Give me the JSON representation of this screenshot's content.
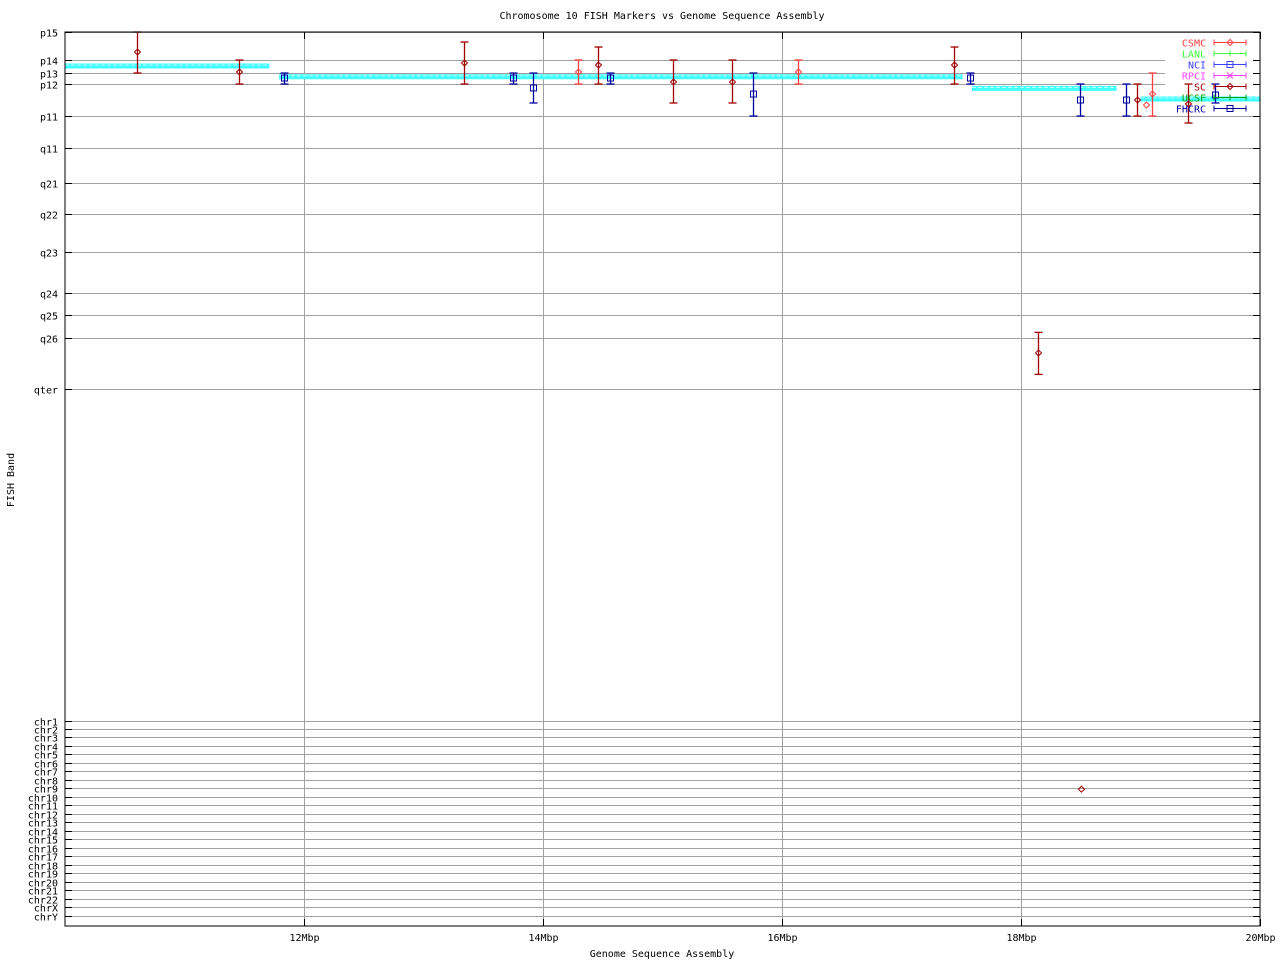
{
  "chart_data": {
    "type": "scatter",
    "title": "Chromosome 10 FISH Markers vs Genome Sequence Assembly",
    "xlabel": "Genome Sequence Assembly",
    "ylabel": "FISH Band",
    "xlim": [
      10,
      20
    ],
    "x_unit": "Mbp",
    "xticks": [
      {
        "v": 12,
        "label": "12Mbp"
      },
      {
        "v": 14,
        "label": "14Mbp"
      },
      {
        "v": 16,
        "label": "16Mbp"
      },
      {
        "v": 18,
        "label": "18Mbp"
      },
      {
        "v": 20,
        "label": "20Mbp"
      }
    ],
    "ylim": [
      0,
      100
    ],
    "y_inverted": true,
    "grid": true,
    "legend_placement": "top-right",
    "yticks": [
      {
        "v": 0,
        "label": "p15"
      },
      {
        "v": 3.1,
        "label": "p14"
      },
      {
        "v": 4.6,
        "label": "p13"
      },
      {
        "v": 5.8,
        "label": "p12"
      },
      {
        "v": 9.4,
        "label": "p11"
      },
      {
        "v": 13.0,
        "label": "q11"
      },
      {
        "v": 16.9,
        "label": "q21"
      },
      {
        "v": 20.4,
        "label": "q22"
      },
      {
        "v": 24.6,
        "label": "q23"
      },
      {
        "v": 29.2,
        "label": "q24"
      },
      {
        "v": 31.7,
        "label": "q25"
      },
      {
        "v": 34.2,
        "label": "q26"
      },
      {
        "v": 39.9,
        "label": "qter"
      },
      {
        "v": 77.1,
        "label": "chr1"
      },
      {
        "v": 78.0,
        "label": "chr2"
      },
      {
        "v": 78.9,
        "label": "chr3"
      },
      {
        "v": 79.9,
        "label": "chr4"
      },
      {
        "v": 80.8,
        "label": "chr5"
      },
      {
        "v": 81.8,
        "label": "chr6"
      },
      {
        "v": 82.7,
        "label": "chr7"
      },
      {
        "v": 83.7,
        "label": "chr8"
      },
      {
        "v": 84.6,
        "label": "chr9"
      },
      {
        "v": 85.6,
        "label": "chr10"
      },
      {
        "v": 86.5,
        "label": "chr11"
      },
      {
        "v": 87.5,
        "label": "chr12"
      },
      {
        "v": 88.4,
        "label": "chr13"
      },
      {
        "v": 89.4,
        "label": "chr14"
      },
      {
        "v": 90.3,
        "label": "chr15"
      },
      {
        "v": 91.3,
        "label": "chr16"
      },
      {
        "v": 92.2,
        "label": "chr17"
      },
      {
        "v": 93.2,
        "label": "chr18"
      },
      {
        "v": 94.1,
        "label": "chr19"
      },
      {
        "v": 95.1,
        "label": "chr20"
      },
      {
        "v": 96.0,
        "label": "chr21"
      },
      {
        "v": 97.0,
        "label": "chr22"
      },
      {
        "v": 97.9,
        "label": "chrX"
      },
      {
        "v": 98.9,
        "label": "chrY"
      }
    ],
    "assembly_segments": {
      "color": "#40ffff",
      "segments": [
        {
          "x0": 10.0,
          "x1": 11.71,
          "y": 3.8
        },
        {
          "x0": 11.79,
          "x1": 17.51,
          "y": 5.0
        },
        {
          "x0": 17.59,
          "x1": 18.8,
          "y": 6.3
        },
        {
          "x0": 19.0,
          "x1": 20.0,
          "y": 7.5
        }
      ]
    },
    "series": [
      {
        "name": "CSMC",
        "color": "#ff4040",
        "marker": "diamond",
        "points": [
          {
            "x": 14.29,
            "y": 4.47,
            "ylow": 3.13,
            "yhigh": 5.82
          },
          {
            "x": 16.13,
            "y": 4.47,
            "ylow": 3.13,
            "yhigh": 5.82
          },
          {
            "x": 19.1,
            "y": 6.94,
            "ylow": 4.59,
            "yhigh": 9.4
          },
          {
            "x": 19.05,
            "y": 8.17
          }
        ]
      },
      {
        "name": "LANL",
        "color": "#40ff40",
        "marker": "plus",
        "points": []
      },
      {
        "name": "NCI",
        "color": "#4040ff",
        "marker": "square",
        "points": []
      },
      {
        "name": "RPCI",
        "color": "#ff40ff",
        "marker": "cross",
        "points": []
      },
      {
        "name": "SC",
        "color": "#a00000",
        "marker": "diamond",
        "points": [
          {
            "x": 10.6,
            "y": 2.24,
            "ylow": 0,
            "yhigh": 4.59
          },
          {
            "x": 11.46,
            "y": 4.47,
            "ylow": 3.13,
            "yhigh": 5.82
          },
          {
            "x": 13.34,
            "y": 3.47,
            "ylow": 1.12,
            "yhigh": 5.82
          },
          {
            "x": 14.46,
            "y": 3.69,
            "ylow": 1.68,
            "yhigh": 5.82
          },
          {
            "x": 15.09,
            "y": 5.59,
            "ylow": 3.13,
            "yhigh": 7.94
          },
          {
            "x": 15.58,
            "y": 5.59,
            "ylow": 3.13,
            "yhigh": 7.94
          },
          {
            "x": 17.44,
            "y": 3.69,
            "ylow": 1.68,
            "yhigh": 5.82
          },
          {
            "x": 18.97,
            "y": 7.61,
            "ylow": 5.82,
            "yhigh": 9.4
          },
          {
            "x": 19.4,
            "y": 8.05,
            "ylow": 5.82,
            "yhigh": 10.18
          },
          {
            "x": 18.14,
            "y": 35.9,
            "ylow": 33.6,
            "yhigh": 38.3
          },
          {
            "x": 18.5,
            "y": 84.7
          }
        ]
      },
      {
        "name": "UCSF",
        "color": "#00a000",
        "marker": "plus",
        "points": []
      },
      {
        "name": "FHCRC",
        "color": "#0000a0",
        "marker": "square",
        "points": [
          {
            "x": 11.83,
            "y": 5.15,
            "ylow": 4.59,
            "yhigh": 5.82
          },
          {
            "x": 13.75,
            "y": 5.15,
            "ylow": 4.59,
            "yhigh": 5.82
          },
          {
            "x": 13.92,
            "y": 6.26,
            "ylow": 4.59,
            "yhigh": 7.94
          },
          {
            "x": 14.56,
            "y": 5.15,
            "ylow": 4.59,
            "yhigh": 5.82
          },
          {
            "x": 15.76,
            "y": 6.94,
            "ylow": 4.59,
            "yhigh": 9.4
          },
          {
            "x": 17.57,
            "y": 5.15,
            "ylow": 4.59,
            "yhigh": 5.82
          },
          {
            "x": 18.49,
            "y": 7.61,
            "ylow": 5.82,
            "yhigh": 9.4
          },
          {
            "x": 18.88,
            "y": 7.61,
            "ylow": 5.82,
            "yhigh": 9.4
          },
          {
            "x": 19.62,
            "y": 7.05,
            "ylow": 5.82,
            "yhigh": 7.94
          }
        ]
      }
    ]
  }
}
